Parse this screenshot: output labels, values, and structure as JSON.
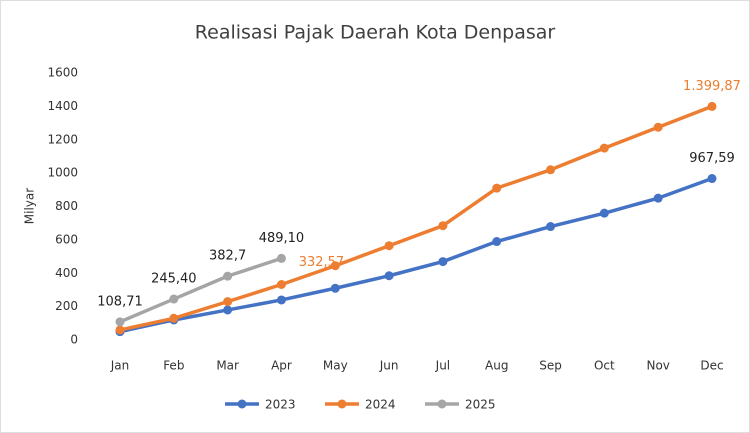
{
  "chart_data": {
    "type": "line",
    "title": "Realisasi Pajak Daerah Kota Denpasar",
    "y_label": "Milyar",
    "categories": [
      "Jan",
      "Feb",
      "Mar",
      "Apr",
      "May",
      "Jun",
      "Jul",
      "Aug",
      "Sep",
      "Oct",
      "Nov",
      "Dec"
    ],
    "series": [
      {
        "name": "2023",
        "color": "#4472c4",
        "label_color": "#222222",
        "values": [
          50,
          120,
          180,
          240,
          310,
          385,
          470,
          590,
          680,
          760,
          850,
          967.59
        ],
        "value_labels": [
          null,
          null,
          null,
          null,
          null,
          null,
          null,
          null,
          null,
          null,
          null,
          "967,59"
        ]
      },
      {
        "name": "2024",
        "color": "#ed7d31",
        "label_color": "#ed7d31",
        "values": [
          60,
          130,
          230,
          332.57,
          445,
          565,
          685,
          910,
          1020,
          1150,
          1275,
          1399.87
        ],
        "value_labels": [
          null,
          null,
          null,
          "332,57",
          null,
          null,
          null,
          null,
          null,
          null,
          null,
          "1.399,87"
        ]
      },
      {
        "name": "2025",
        "color": "#a5a5a5",
        "label_color": "#222222",
        "values": [
          108.71,
          245.4,
          382.7,
          489.1,
          null,
          null,
          null,
          null,
          null,
          null,
          null,
          null
        ],
        "value_labels": [
          "108,71",
          "245,40",
          "382,7",
          "489,10",
          null,
          null,
          null,
          null,
          null,
          null,
          null,
          null
        ]
      }
    ],
    "ylim": [
      0,
      1600
    ],
    "yticks": [
      0,
      200,
      400,
      600,
      800,
      1000,
      1200,
      1400,
      1600
    ],
    "grid": false,
    "legend": "bottom"
  }
}
